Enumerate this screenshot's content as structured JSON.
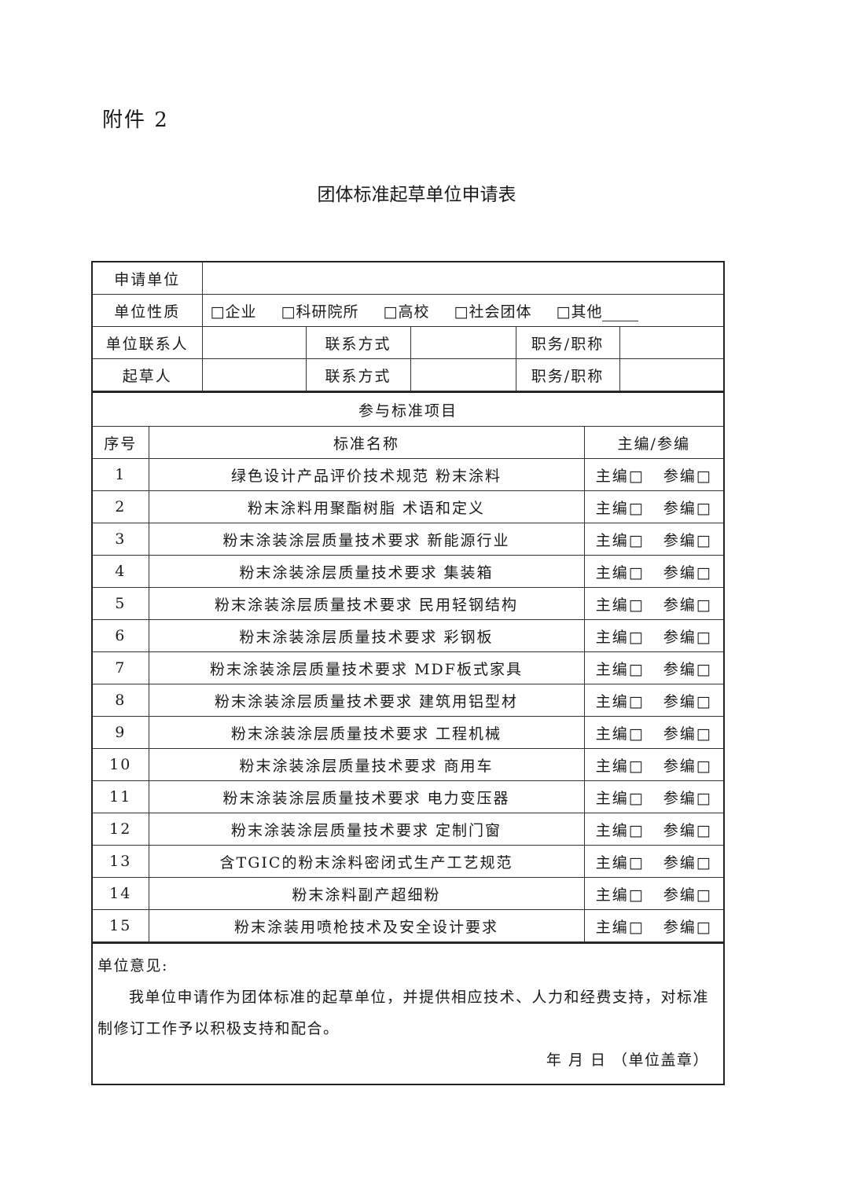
{
  "attachment": "附件 2",
  "title": "团体标准起草单位申请表",
  "form": {
    "applicant_label": "申请单位",
    "nature_label": "单位性质",
    "nature_options": [
      "□企业",
      "□科研院所",
      "□高校",
      "□社会团体",
      "□其他"
    ],
    "contact_person_label": "单位联系人",
    "drafter_label": "起草人",
    "contact_method_label": "联系方式",
    "position_label": "职务/职称",
    "section_title": "参与标准项目",
    "col_no": "序号",
    "col_name": "标准名称",
    "col_role": "主编/参编",
    "role_chief": "主编□",
    "role_participant": "参编□",
    "standards": [
      {
        "no": "1",
        "name": "绿色设计产品评价技术规范 粉末涂料"
      },
      {
        "no": "2",
        "name": "粉末涂料用聚酯树脂 术语和定义"
      },
      {
        "no": "3",
        "name": "粉末涂装涂层质量技术要求 新能源行业"
      },
      {
        "no": "4",
        "name": "粉末涂装涂层质量技术要求 集装箱"
      },
      {
        "no": "5",
        "name": "粉末涂装涂层质量技术要求 民用轻钢结构"
      },
      {
        "no": "6",
        "name": "粉末涂装涂层质量技术要求 彩钢板"
      },
      {
        "no": "7",
        "name": "粉末涂装涂层质量技术要求 MDF板式家具"
      },
      {
        "no": "8",
        "name": "粉末涂装涂层质量技术要求 建筑用铝型材"
      },
      {
        "no": "9",
        "name": "粉末涂装涂层质量技术要求 工程机械"
      },
      {
        "no": "10",
        "name": "粉末涂装涂层质量技术要求 商用车"
      },
      {
        "no": "11",
        "name": "粉末涂装涂层质量技术要求 电力变压器"
      },
      {
        "no": "12",
        "name": "粉末涂装涂层质量技术要求 定制门窗"
      },
      {
        "no": "13",
        "name": "含TGIC的粉末涂料密闭式生产工艺规范"
      },
      {
        "no": "14",
        "name": "粉末涂料副产超细粉"
      },
      {
        "no": "15",
        "name": "粉末涂装用喷枪技术及安全设计要求"
      }
    ],
    "opinion_label": "单位意见:",
    "opinion_text": "我单位申请作为团体标准的起草单位，并提供相应技术、人力和经费支持，对标准制修订工作予以积极支持和配合。",
    "signature_line": "年  月  日 （单位盖章）"
  }
}
